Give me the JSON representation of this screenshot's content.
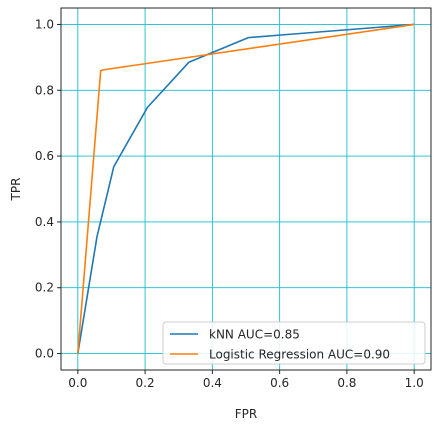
{
  "chart_data": {
    "type": "line",
    "title": "",
    "xlabel": "FPR",
    "ylabel": "TPR",
    "xlim": [
      -0.05,
      1.05
    ],
    "ylim": [
      -0.05,
      1.05
    ],
    "xticks": [
      "0.0",
      "0.2",
      "0.4",
      "0.6",
      "0.8",
      "1.0"
    ],
    "yticks": [
      "0.0",
      "0.2",
      "0.4",
      "0.6",
      "0.8",
      "1.0"
    ],
    "grid": true,
    "grid_color": "#17becf",
    "legend_position": "lower right",
    "series": [
      {
        "name": "kNN AUC=0.85",
        "color": "#1f77b4",
        "points": [
          [
            0,
            0
          ],
          [
            0.057,
            0.355
          ],
          [
            0.107,
            0.568
          ],
          [
            0.207,
            0.748
          ],
          [
            0.33,
            0.885
          ],
          [
            0.507,
            0.96
          ],
          [
            0.604,
            0.968
          ],
          [
            1.0,
            1.0
          ]
        ]
      },
      {
        "name": "Logistic Regression AUC=0.90",
        "color": "#ff7f0e",
        "points": [
          [
            0,
            0
          ],
          [
            0.068,
            0.859
          ],
          [
            0.075,
            0.862
          ],
          [
            1.0,
            1.0
          ]
        ]
      }
    ]
  }
}
